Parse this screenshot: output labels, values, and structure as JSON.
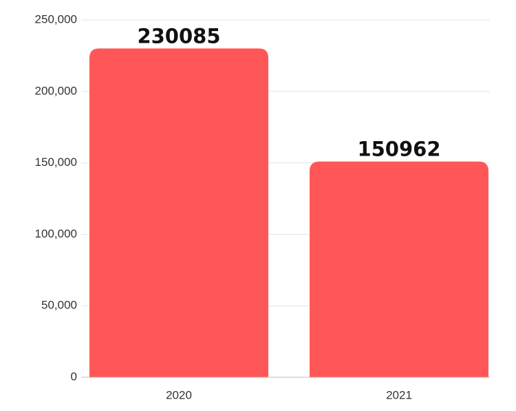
{
  "chart_data": {
    "type": "bar",
    "categories": [
      "2020",
      "2021"
    ],
    "values": [
      230085,
      150962
    ],
    "color": "#ff5757",
    "ylim": [
      0,
      250000
    ],
    "yticks": [
      0,
      {
        "value": 50000,
        "label": "50,000"
      },
      {
        "value": 100000,
        "label": "100,000"
      },
      {
        "value": 150000,
        "label": "150,000"
      },
      {
        "value": 200000,
        "label": "200,000"
      },
      {
        "value": 250000,
        "label": "250,000"
      }
    ],
    "grid": true
  }
}
